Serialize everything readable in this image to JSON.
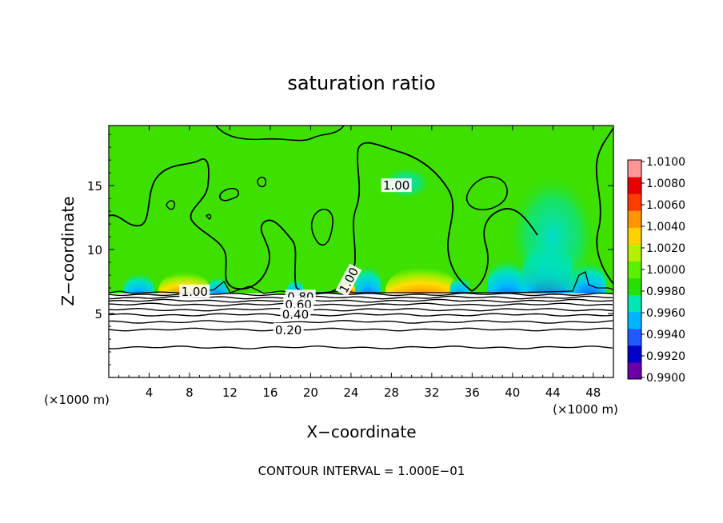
{
  "chart_data": {
    "type": "heatmap",
    "title": "saturation ratio",
    "xlabel": "X−coordinate",
    "ylabel": "Z−coordinate",
    "x_unit": "(×1000 m)",
    "xlim": [
      0,
      50
    ],
    "ylim": [
      0,
      19.7
    ],
    "x_ticks": [
      4,
      8,
      12,
      16,
      20,
      24,
      28,
      32,
      36,
      40,
      44,
      48
    ],
    "x_tick_labels": [
      "4",
      "8",
      "12",
      "16",
      "20",
      "24",
      "28",
      "32",
      "36",
      "40",
      "44",
      "48"
    ],
    "y_ticks": [
      5,
      10,
      15
    ],
    "y_tick_labels": [
      "5",
      "10",
      "15"
    ],
    "footnote": "CONTOUR INTERVAL = 1.000E−01",
    "colorbar": {
      "levels": [
        0.99,
        0.992,
        0.994,
        0.996,
        0.998,
        1.0,
        1.002,
        1.004,
        1.006,
        1.008,
        1.01
      ],
      "labels": [
        "1.0100",
        "1.0080",
        "1.0060",
        "1.0040",
        "1.0020",
        "1.0000",
        "0.9980",
        "0.9960",
        "0.9940",
        "0.9920",
        "0.9900"
      ],
      "colors": [
        "#6c00a8",
        "#0000c8",
        "#1e5aff",
        "#00b4ff",
        "#00e6b4",
        "#28e000",
        "#5af000",
        "#b4f000",
        "#ffd200",
        "#ff9600",
        "#ff3c00",
        "#e60000",
        "#ff9696"
      ]
    },
    "contour_labels": [
      {
        "text": "1.00",
        "x": 8.5,
        "z": 6.7
      },
      {
        "text": "1.00",
        "x": 28.5,
        "z": 15.0
      },
      {
        "text": "1.00",
        "x": 23.8,
        "z": 7.6
      },
      {
        "text": "0.80",
        "x": 19.0,
        "z": 6.3
      },
      {
        "text": "0.60",
        "x": 18.8,
        "z": 5.7
      },
      {
        "text": "0.40",
        "x": 18.5,
        "z": 4.9
      },
      {
        "text": "0.20",
        "x": 17.8,
        "z": 3.7
      }
    ],
    "lower_region_contours": [
      {
        "level": 0.9,
        "z": 6.5
      },
      {
        "level": 0.8,
        "z": 6.25
      },
      {
        "level": 0.7,
        "z": 6.0
      },
      {
        "level": 0.6,
        "z": 5.7
      },
      {
        "level": 0.5,
        "z": 5.3
      },
      {
        "level": 0.4,
        "z": 4.9
      },
      {
        "level": 0.3,
        "z": 4.35
      },
      {
        "level": 0.2,
        "z": 3.75
      },
      {
        "level": 0.1,
        "z": 2.35
      }
    ],
    "features": [
      {
        "type": "warm",
        "x": 7.5,
        "z": 6.7,
        "w": 2.6,
        "h": 1.6
      },
      {
        "type": "warm",
        "x": 31.0,
        "z": 6.7,
        "w": 3.6,
        "h": 2.0
      },
      {
        "type": "warm",
        "x": 23.8,
        "z": 6.9,
        "w": 0.6,
        "h": 0.6
      },
      {
        "type": "cold",
        "x": 3.0,
        "z": 6.8,
        "w": 1.5,
        "h": 1.5
      },
      {
        "type": "cold",
        "x": 10.8,
        "z": 6.8,
        "w": 1.0,
        "h": 1.2
      },
      {
        "type": "cold",
        "x": 18.5,
        "z": 6.8,
        "w": 0.8,
        "h": 1.0
      },
      {
        "type": "cold",
        "x": 25.7,
        "z": 7.0,
        "w": 1.3,
        "h": 1.9
      },
      {
        "type": "cold",
        "x": 34.8,
        "z": 6.8,
        "w": 1.0,
        "h": 1.2
      },
      {
        "type": "cold",
        "x": 39.5,
        "z": 7.1,
        "w": 2.0,
        "h": 2.3
      },
      {
        "type": "cold",
        "x": 43.5,
        "z": 7.6,
        "w": 2.6,
        "h": 3.6
      },
      {
        "type": "cold",
        "x": 47.5,
        "z": 7.2,
        "w": 1.8,
        "h": 2.0
      },
      {
        "type": "moist",
        "x": 44.0,
        "z": 11.0,
        "w": 4.5,
        "h": 5.0
      },
      {
        "type": "moist",
        "x": 29.5,
        "z": 15.2,
        "w": 2.5,
        "h": 1.3
      }
    ]
  }
}
